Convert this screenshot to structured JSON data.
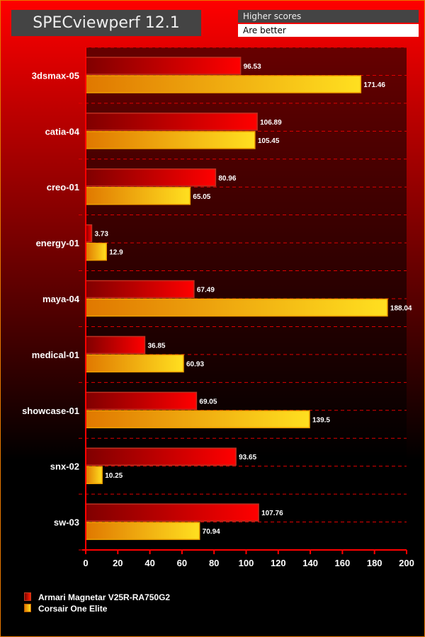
{
  "chart_data": {
    "type": "bar",
    "orientation": "horizontal",
    "title": "SPECviewperf 12.1",
    "note": [
      "Higher scores",
      "Are better"
    ],
    "categories": [
      "3dsmax-05",
      "catia-04",
      "creo-01",
      "energy-01",
      "maya-04",
      "medical-01",
      "showcase-01",
      "snx-02",
      "sw-03"
    ],
    "series": [
      {
        "name": "Armari Magnetar V25R-RA750G2",
        "color": "#e00000",
        "values": [
          96.53,
          106.89,
          80.96,
          3.73,
          67.49,
          36.85,
          69.05,
          93.65,
          107.76
        ]
      },
      {
        "name": "Corsair One Elite",
        "color": "#f5b800",
        "values": [
          171.46,
          105.45,
          65.05,
          12.9,
          188.04,
          60.93,
          139.5,
          10.25,
          70.94
        ]
      }
    ],
    "xlim": [
      0,
      200
    ],
    "xticks": [
      0,
      20,
      40,
      60,
      80,
      100,
      120,
      140,
      160,
      180,
      200
    ],
    "legend": "bottom-left",
    "grid": true
  }
}
